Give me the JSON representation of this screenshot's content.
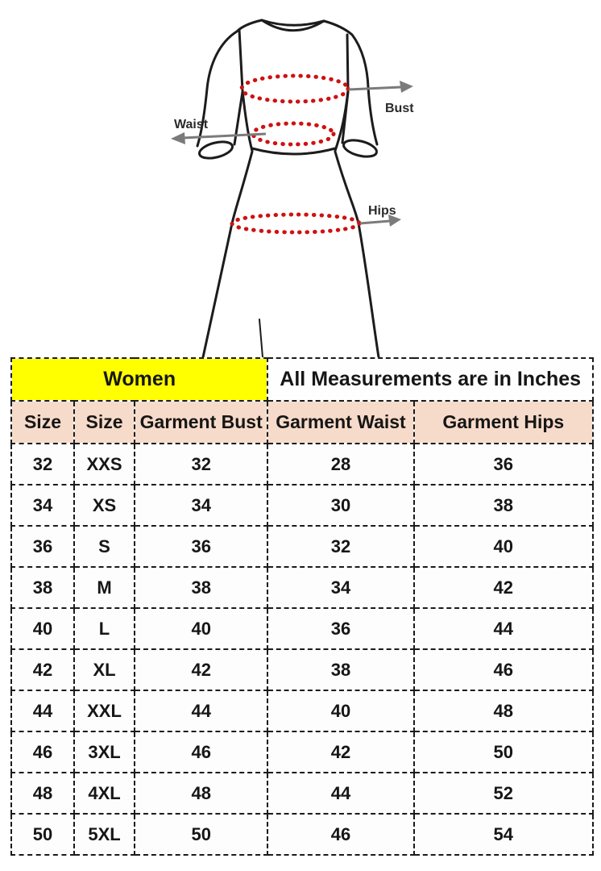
{
  "diagram": {
    "labels": {
      "bust": "Bust",
      "waist": "Waist",
      "hips": "Hips"
    },
    "colors": {
      "outline": "#1c1c1c",
      "measure_dots": "#cf1111",
      "arrow": "#7b7b7b",
      "label_text": "#2a2a2a"
    }
  },
  "chart_data": {
    "type": "table",
    "banner_left": "Women",
    "banner_right": "All Measurements are in Inches",
    "banner_left_bg": "#ffff00",
    "header_bg": "#f7dbca",
    "columns": [
      "Size",
      "Size",
      "Garment Bust",
      "Garment Waist",
      "Garment Hips"
    ],
    "rows": [
      [
        "32",
        "XXS",
        "32",
        "28",
        "36"
      ],
      [
        "34",
        "XS",
        "34",
        "30",
        "38"
      ],
      [
        "36",
        "S",
        "36",
        "32",
        "40"
      ],
      [
        "38",
        "M",
        "38",
        "34",
        "42"
      ],
      [
        "40",
        "L",
        "40",
        "36",
        "44"
      ],
      [
        "42",
        "XL",
        "42",
        "38",
        "46"
      ],
      [
        "44",
        "XXL",
        "44",
        "40",
        "48"
      ],
      [
        "46",
        "3XL",
        "46",
        "42",
        "50"
      ],
      [
        "48",
        "4XL",
        "48",
        "44",
        "52"
      ],
      [
        "50",
        "5XL",
        "50",
        "46",
        "54"
      ]
    ],
    "units": "Inches"
  }
}
